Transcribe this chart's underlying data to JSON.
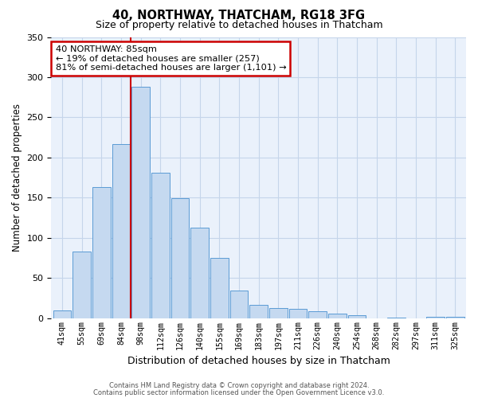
{
  "title": "40, NORTHWAY, THATCHAM, RG18 3FG",
  "subtitle": "Size of property relative to detached houses in Thatcham",
  "xlabel": "Distribution of detached houses by size in Thatcham",
  "ylabel": "Number of detached properties",
  "bar_labels": [
    "41sqm",
    "55sqm",
    "69sqm",
    "84sqm",
    "98sqm",
    "112sqm",
    "126sqm",
    "140sqm",
    "155sqm",
    "169sqm",
    "183sqm",
    "197sqm",
    "211sqm",
    "226sqm",
    "240sqm",
    "254sqm",
    "268sqm",
    "282sqm",
    "297sqm",
    "311sqm",
    "325sqm"
  ],
  "bar_values": [
    10,
    83,
    163,
    217,
    288,
    181,
    149,
    113,
    75,
    35,
    17,
    13,
    12,
    9,
    6,
    4,
    0,
    1,
    0,
    2,
    2
  ],
  "bar_color": "#c5d9f0",
  "bar_edge_color": "#5b9bd5",
  "vline_x": 3.5,
  "vline_color": "#cc0000",
  "annotation_title": "40 NORTHWAY: 85sqm",
  "annotation_line1": "← 19% of detached houses are smaller (257)",
  "annotation_line2": "81% of semi-detached houses are larger (1,101) →",
  "annotation_box_color": "#ffffff",
  "annotation_box_edge": "#cc0000",
  "ylim": [
    0,
    350
  ],
  "yticks": [
    0,
    50,
    100,
    150,
    200,
    250,
    300,
    350
  ],
  "footer1": "Contains HM Land Registry data © Crown copyright and database right 2024.",
  "footer2": "Contains public sector information licensed under the Open Government Licence v3.0.",
  "background_color": "#ffffff",
  "plot_bg_color": "#eaf1fb",
  "grid_color": "#c5d5ea"
}
